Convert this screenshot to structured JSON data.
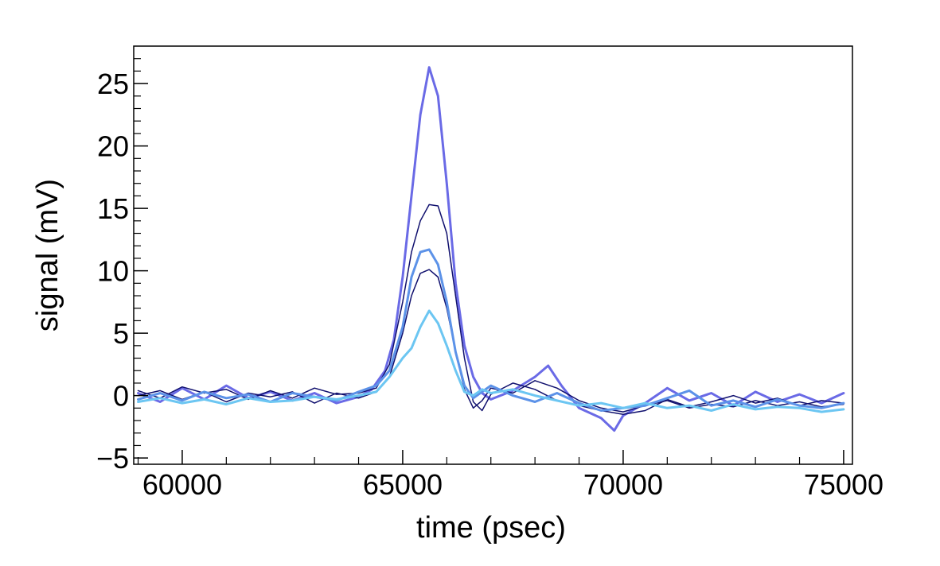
{
  "chart_data": {
    "type": "line",
    "xlabel": "time (psec)",
    "ylabel": "signal (mV)",
    "xlim": [
      58900,
      75200
    ],
    "ylim": [
      -5.5,
      28
    ],
    "x_ticks": [
      60000,
      65000,
      70000,
      75000
    ],
    "x_tick_labels": [
      "60000",
      "65000",
      "70000",
      "75000"
    ],
    "y_ticks": [
      -5,
      0,
      5,
      10,
      15,
      20,
      25
    ],
    "y_tick_labels": [
      "−5",
      "0",
      "5",
      "10",
      "15",
      "20",
      "25"
    ],
    "grid": false,
    "legend": "none",
    "series": [
      {
        "color": "#6a6ae6",
        "width": 3,
        "x": [
          59000,
          59500,
          60000,
          60500,
          61000,
          61500,
          62000,
          62500,
          63000,
          63500,
          64000,
          64300,
          64600,
          64800,
          65000,
          65200,
          65400,
          65600,
          65800,
          66000,
          66200,
          66400,
          66600,
          66800,
          67000,
          67500,
          68000,
          68300,
          68600,
          69000,
          69500,
          69800,
          70000,
          70500,
          71000,
          71500,
          72000,
          72500,
          73000,
          73500,
          74000,
          74500,
          75000
        ],
        "y": [
          0.2,
          -0.5,
          0.6,
          -0.3,
          0.8,
          -0.2,
          0.3,
          -0.4,
          0.2,
          -0.6,
          -0.1,
          0.5,
          2.0,
          4.5,
          9.5,
          16.0,
          22.5,
          26.3,
          24.0,
          17.0,
          9.0,
          4.0,
          1.5,
          0.2,
          -0.3,
          0.4,
          1.5,
          2.4,
          0.8,
          -1.0,
          -1.8,
          -2.8,
          -1.6,
          -0.6,
          0.6,
          -0.4,
          0.2,
          -0.8,
          0.3,
          -0.5,
          0.1,
          -0.6,
          0.2
        ]
      },
      {
        "color": "#10106e",
        "width": 1.5,
        "x": [
          59000,
          59500,
          60000,
          60500,
          61000,
          61500,
          62000,
          62500,
          63000,
          63500,
          64000,
          64400,
          64700,
          65000,
          65200,
          65400,
          65600,
          65800,
          66000,
          66200,
          66400,
          66600,
          66800,
          67000,
          67500,
          68000,
          68500,
          69000,
          69500,
          70000,
          70500,
          71000,
          71500,
          72000,
          72500,
          73000,
          73500,
          74000,
          74500,
          75000
        ],
        "y": [
          0.4,
          -0.2,
          0.7,
          0.2,
          0.5,
          -0.3,
          0.4,
          -0.2,
          0.6,
          0.1,
          0.2,
          0.6,
          2.5,
          7.5,
          11.5,
          14.0,
          15.3,
          15.2,
          13.0,
          8.0,
          3.0,
          -0.5,
          -1.2,
          0.1,
          1.0,
          0.5,
          -0.4,
          -0.8,
          -1.2,
          -1.5,
          -1.2,
          -0.3,
          -0.9,
          -0.5,
          0.0,
          -0.6,
          -0.2,
          -0.8,
          -0.4,
          -0.6
        ]
      },
      {
        "color": "#10106e",
        "width": 1.5,
        "x": [
          59000,
          59500,
          60000,
          60500,
          61000,
          61500,
          62000,
          62500,
          63000,
          63500,
          64000,
          64400,
          64700,
          65000,
          65200,
          65400,
          65600,
          65800,
          66000,
          66200,
          66400,
          66600,
          66800,
          67000,
          67500,
          68000,
          68500,
          69000,
          69500,
          70000,
          70500,
          71000,
          71500,
          72000,
          72500,
          73000,
          73500,
          74000,
          74500,
          75000
        ],
        "y": [
          0.0,
          0.4,
          -0.3,
          0.3,
          -0.5,
          0.2,
          -0.1,
          0.3,
          -0.6,
          0.2,
          -0.2,
          0.3,
          1.5,
          5.0,
          8.0,
          9.8,
          10.1,
          9.5,
          7.0,
          3.5,
          0.5,
          -1.0,
          -0.4,
          0.6,
          0.2,
          1.2,
          0.6,
          -0.4,
          -1.0,
          -1.3,
          -0.8,
          -0.4,
          -1.0,
          -0.7,
          -0.9,
          -0.4,
          -0.8,
          -0.5,
          -0.9,
          -0.7
        ]
      },
      {
        "color": "#5c92e8",
        "width": 3,
        "x": [
          59000,
          59500,
          60000,
          60500,
          61000,
          61500,
          62000,
          62500,
          63000,
          63500,
          64000,
          64400,
          64700,
          65000,
          65200,
          65400,
          65600,
          65800,
          66000,
          66200,
          66400,
          66600,
          66800,
          67000,
          67500,
          68000,
          68500,
          69000,
          69500,
          70000,
          70500,
          71000,
          71500,
          72000,
          72500,
          73000,
          73500,
          74000,
          74500,
          75000
        ],
        "y": [
          -0.3,
          0.2,
          -0.4,
          0.3,
          -0.2,
          0.1,
          -0.5,
          0.2,
          -0.1,
          -0.4,
          0.3,
          0.8,
          2.0,
          5.5,
          9.5,
          11.5,
          11.7,
          10.5,
          7.5,
          3.5,
          0.8,
          -0.2,
          0.3,
          0.8,
          0.0,
          -0.5,
          0.2,
          -0.6,
          -1.2,
          -1.0,
          -0.8,
          -0.2,
          0.4,
          -0.8,
          -0.4,
          -0.9,
          -0.3,
          -0.8,
          -1.0,
          -0.6
        ]
      },
      {
        "color": "#6cc6f2",
        "width": 3,
        "x": [
          59000,
          59500,
          60000,
          60500,
          61000,
          61500,
          62000,
          62500,
          63000,
          63500,
          64000,
          64400,
          64700,
          65000,
          65200,
          65400,
          65600,
          65800,
          66000,
          66200,
          66400,
          66600,
          66800,
          67000,
          67500,
          68000,
          68500,
          69000,
          69500,
          70000,
          70500,
          71000,
          71500,
          72000,
          72500,
          73000,
          73500,
          74000,
          74500,
          75000
        ],
        "y": [
          -0.5,
          -0.2,
          -0.6,
          -0.3,
          -0.7,
          -0.2,
          -0.5,
          -0.4,
          -0.1,
          -0.3,
          0.0,
          0.3,
          1.5,
          3.0,
          3.8,
          5.5,
          6.8,
          5.8,
          4.0,
          2.0,
          0.3,
          0.0,
          0.5,
          0.2,
          0.5,
          0.0,
          -0.4,
          -0.8,
          -0.6,
          -1.0,
          -0.6,
          -1.0,
          -0.8,
          -1.2,
          -0.7,
          -1.1,
          -0.9,
          -1.0,
          -1.3,
          -1.1
        ]
      }
    ]
  }
}
